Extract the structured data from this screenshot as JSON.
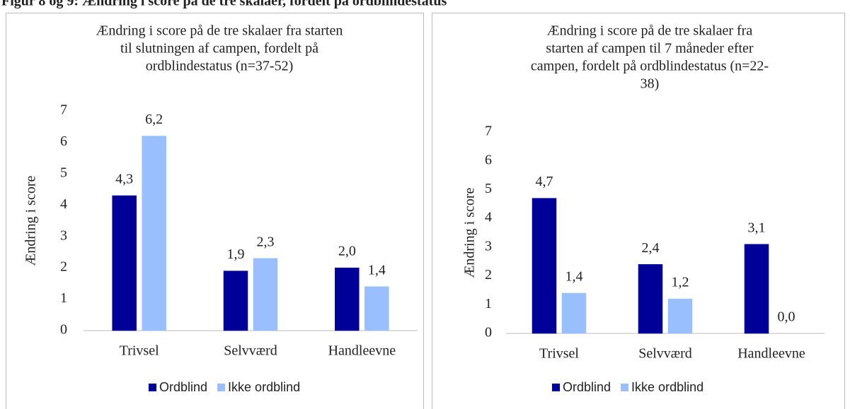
{
  "heading": "Figur 8 og 9: Ændring i score på de tre skalaer, fordelt på ordblindestatus",
  "chart_data": [
    {
      "type": "bar",
      "title": [
        "Ændring i score på de tre skalaer fra starten",
        "til slutningen af campen, fordelt på",
        "ordblindestatus (n=37-52)"
      ],
      "ylabel": "Ændring i score",
      "categories": [
        "Trivsel",
        "Selvværd",
        "Handleevne"
      ],
      "series": [
        {
          "name": "Ordblind",
          "color": "#000099",
          "values": [
            4.3,
            1.9,
            2.0
          ],
          "value_labels": [
            "4,3",
            "1,9",
            "2,0"
          ]
        },
        {
          "name": "Ikke ordblind",
          "color": "#99bfff",
          "values": [
            6.2,
            2.3,
            1.4
          ],
          "value_labels": [
            "6,2",
            "2,3",
            "1,4"
          ]
        }
      ],
      "ylim": [
        0,
        7
      ],
      "yticks": [
        0,
        1,
        2,
        3,
        4,
        5,
        6,
        7
      ],
      "grid": false,
      "legend": "bottom"
    },
    {
      "type": "bar",
      "title": [
        "Ændring i score på de tre skalaer fra",
        "starten af campen til 7 måneder efter",
        "campen, fordelt på ordblindestatus (n=22-",
        "38)"
      ],
      "ylabel": "Ændring i score",
      "categories": [
        "Trivsel",
        "Selvværd",
        "Handleevne"
      ],
      "series": [
        {
          "name": "Ordblind",
          "color": "#000099",
          "values": [
            4.7,
            2.4,
            3.1
          ],
          "value_labels": [
            "4,7",
            "2,4",
            "3,1"
          ]
        },
        {
          "name": "Ikke ordblind",
          "color": "#99bfff",
          "values": [
            1.4,
            1.2,
            0.0
          ],
          "value_labels": [
            "1,4",
            "1,2",
            "0,0"
          ]
        }
      ],
      "ylim": [
        0,
        7
      ],
      "yticks": [
        0,
        1,
        2,
        3,
        4,
        5,
        6,
        7
      ],
      "grid": false,
      "legend": "bottom"
    }
  ]
}
